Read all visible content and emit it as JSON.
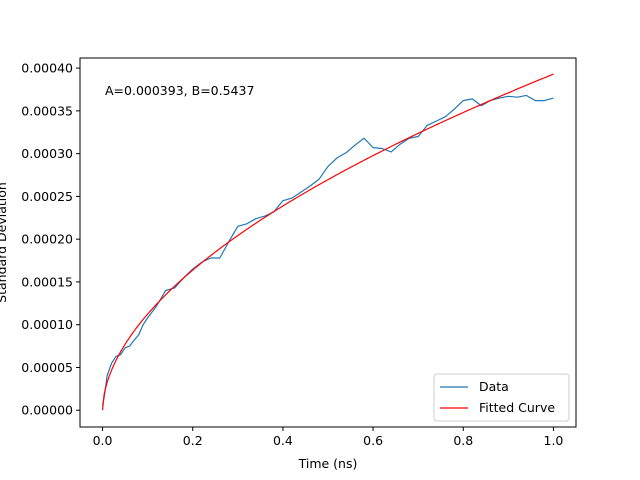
{
  "chart_data": {
    "type": "line",
    "title": "",
    "xlabel": "Time (ns)",
    "ylabel": "Standard Deviation",
    "xlim": [
      -0.05,
      1.05
    ],
    "ylim": [
      -1.96e-05,
      0.0004118
    ],
    "xticks": [
      0.0,
      0.2,
      0.4,
      0.6,
      0.8,
      1.0
    ],
    "xtick_labels": [
      "0.0",
      "0.2",
      "0.4",
      "0.6",
      "0.8",
      "1.0"
    ],
    "yticks": [
      0.0,
      5e-05,
      0.0001,
      0.00015,
      0.0002,
      0.00025,
      0.0003,
      0.00035,
      0.0004
    ],
    "ytick_labels": [
      "0.00000",
      "0.00005",
      "0.00010",
      "0.00015",
      "0.00020",
      "0.00025",
      "0.00030",
      "0.00035",
      "0.00040"
    ],
    "grid": false,
    "legend_position": "lower-right",
    "annotation": "A=0.000393, B=0.5437",
    "series": [
      {
        "name": "Data",
        "color": "#1f77b4",
        "x": [
          0.0,
          0.005,
          0.01,
          0.02,
          0.03,
          0.04,
          0.05,
          0.06,
          0.07,
          0.08,
          0.09,
          0.1,
          0.12,
          0.14,
          0.16,
          0.18,
          0.2,
          0.22,
          0.24,
          0.26,
          0.28,
          0.3,
          0.32,
          0.34,
          0.36,
          0.38,
          0.4,
          0.42,
          0.44,
          0.46,
          0.48,
          0.5,
          0.52,
          0.54,
          0.56,
          0.58,
          0.6,
          0.62,
          0.64,
          0.66,
          0.68,
          0.7,
          0.72,
          0.74,
          0.76,
          0.78,
          0.8,
          0.82,
          0.84,
          0.86,
          0.88,
          0.9,
          0.92,
          0.94,
          0.96,
          0.98,
          1.0
        ],
        "y": [
          5e-06,
          2e-05,
          4e-05,
          5.5e-05,
          6.3e-05,
          6.5e-05,
          7.3e-05,
          7.5e-05,
          8.2e-05,
          8.8e-05,
          0.0001,
          0.000108,
          0.000122,
          0.00014,
          0.000143,
          0.000155,
          0.000165,
          0.000173,
          0.000178,
          0.000178,
          0.000197,
          0.000215,
          0.000218,
          0.000224,
          0.000227,
          0.000232,
          0.000245,
          0.000248,
          0.000255,
          0.000262,
          0.00027,
          0.000285,
          0.000295,
          0.000301,
          0.00031,
          0.000318,
          0.000307,
          0.000306,
          0.000302,
          0.000311,
          0.000318,
          0.00032,
          0.000333,
          0.000338,
          0.000343,
          0.000352,
          0.000362,
          0.000364,
          0.000356,
          0.000362,
          0.000365,
          0.000367,
          0.000366,
          0.000368,
          0.000362,
          0.000362,
          0.000365
        ]
      },
      {
        "name": "Fitted Curve",
        "color": "#ff0000",
        "function": "A*x^B",
        "A": 0.000393,
        "B": 0.5437,
        "x_range": [
          0.0,
          1.0
        ]
      }
    ]
  }
}
